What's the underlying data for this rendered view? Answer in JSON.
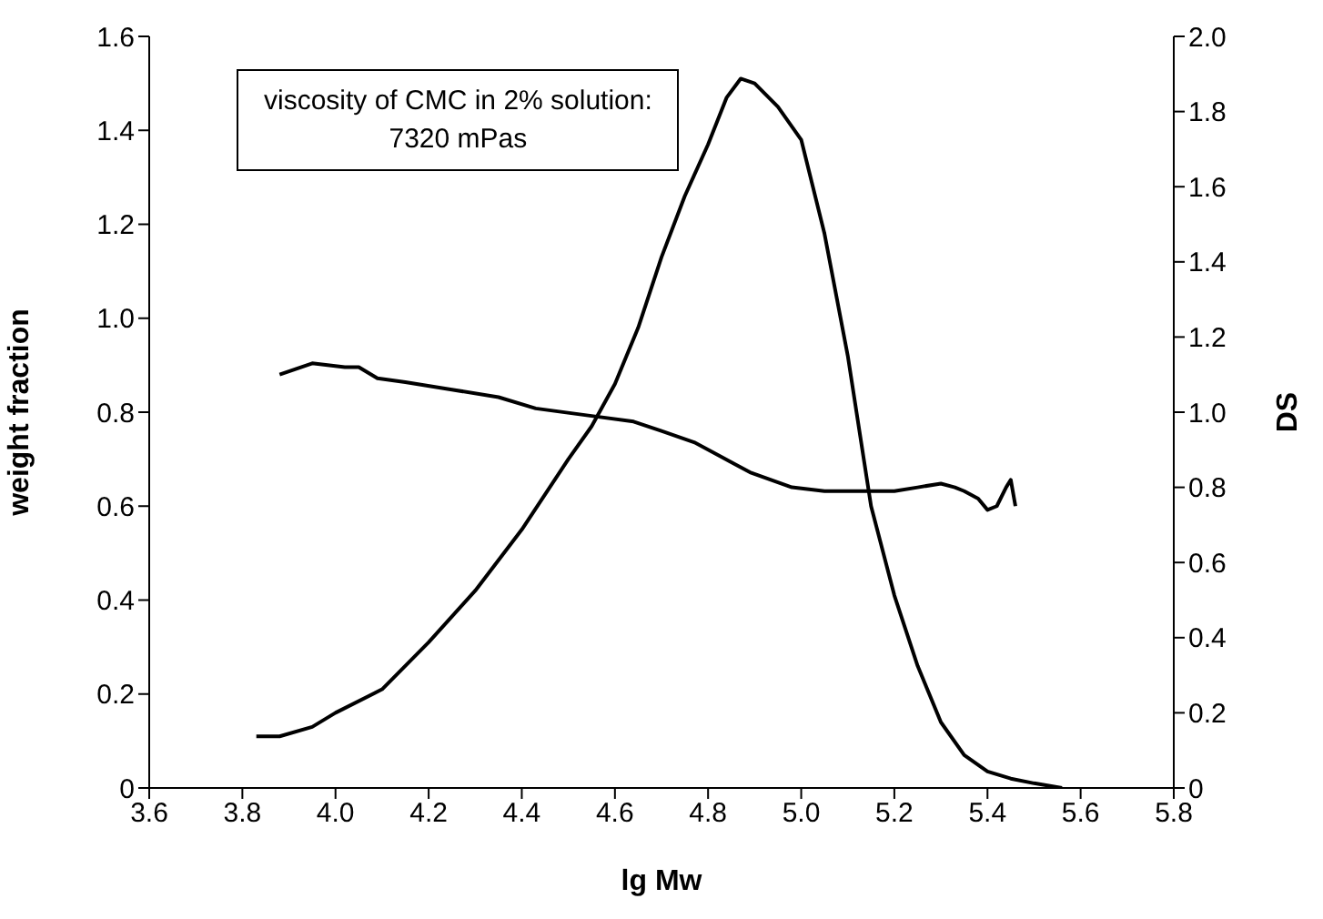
{
  "chart_data": {
    "type": "line",
    "xlabel": "lg Mw",
    "ylabel": "weight fraction",
    "y2label": "DS",
    "annotations": [
      "viscosity of CMC in 2% solution:\n7320 mPas"
    ],
    "xlim": [
      3.6,
      5.8
    ],
    "xticks": [
      3.6,
      3.8,
      {
        "value": 4,
        "label": "4.0"
      },
      4.2,
      4.4,
      4.6,
      4.8,
      {
        "value": 5,
        "label": "5.0"
      },
      5.2,
      5.4,
      5.6,
      5.8
    ],
    "ylim": [
      0,
      1.6
    ],
    "yticks": [
      0,
      0.2,
      0.4,
      0.6,
      0.8,
      {
        "value": 1,
        "label": "1.0"
      },
      1.2,
      1.4,
      1.6
    ],
    "y2lim": [
      0,
      2
    ],
    "y2ticks": [
      0,
      0.2,
      0.4,
      0.6,
      0.8,
      {
        "value": 1,
        "label": "1.0"
      },
      1.2,
      1.4,
      1.6,
      1.8,
      {
        "value": 2,
        "label": "2.0"
      }
    ],
    "marker": "none",
    "line_style": "solid",
    "series": [
      {
        "color": "#000000",
        "x": [
          3.83,
          3.88,
          3.95,
          4.0,
          4.1,
          4.2,
          4.3,
          4.4,
          4.5,
          4.55,
          4.6,
          4.65,
          4.7,
          4.75,
          4.8,
          4.84,
          4.87,
          4.9,
          4.95,
          5.0,
          5.05,
          5.1,
          5.15,
          5.2,
          5.25,
          5.3,
          5.35,
          5.4,
          5.45,
          5.5,
          5.56
        ],
        "values": [
          0.11,
          0.11,
          0.13,
          0.16,
          0.21,
          0.31,
          0.42,
          0.55,
          0.7,
          0.77,
          0.86,
          0.98,
          1.13,
          1.26,
          1.37,
          1.47,
          1.51,
          1.5,
          1.45,
          1.38,
          1.18,
          0.92,
          0.6,
          0.41,
          0.26,
          0.14,
          0.07,
          0.035,
          0.02,
          0.01,
          0
        ]
      },
      {
        "color": "#000000",
        "axis": "y2",
        "x": [
          3.88,
          3.95,
          4.02,
          4.05,
          4.09,
          4.15,
          4.25,
          4.35,
          4.43,
          4.55,
          4.64,
          4.7,
          4.77,
          4.83,
          4.89,
          4.98,
          5.05,
          5.14,
          5.2,
          5.25,
          5.3,
          5.33,
          5.35,
          5.38,
          5.4,
          5.42,
          5.44,
          5.45,
          5.46
        ],
        "values": [
          1.1,
          1.13,
          1.12,
          1.12,
          1.09,
          1.08,
          1.06,
          1.04,
          1.01,
          0.99,
          0.975,
          0.95,
          0.92,
          0.88,
          0.84,
          0.8,
          0.79,
          0.79,
          0.79,
          0.8,
          0.81,
          0.8,
          0.79,
          0.77,
          0.74,
          0.75,
          0.8,
          0.82,
          0.75
        ]
      }
    ]
  }
}
